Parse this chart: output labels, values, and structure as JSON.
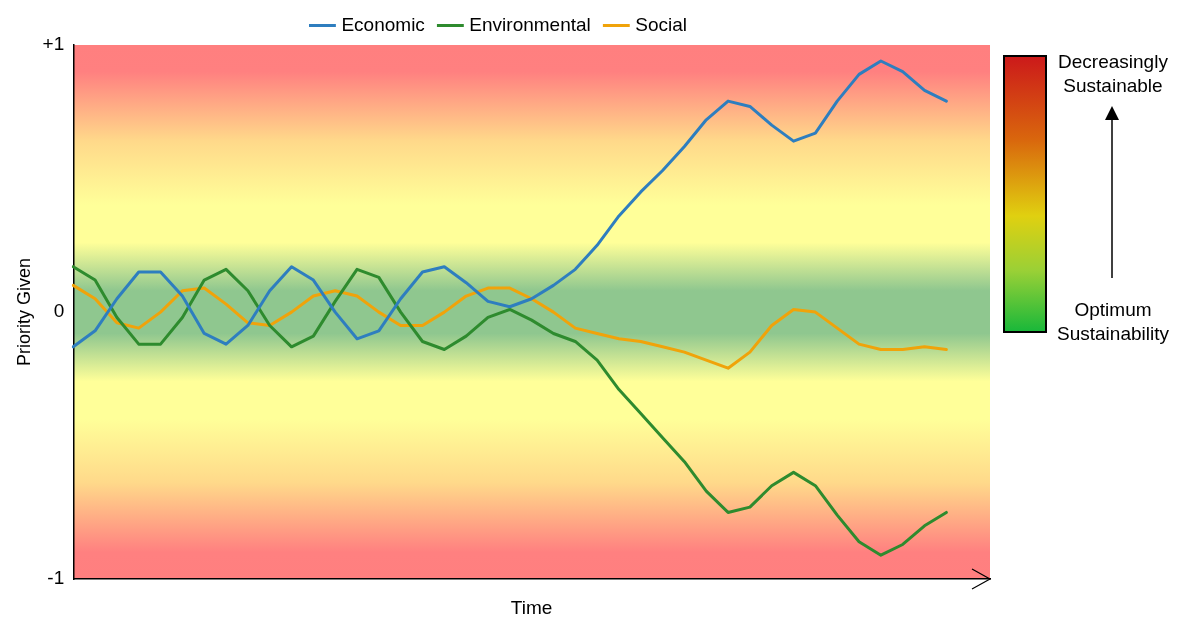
{
  "chart_data": {
    "type": "line",
    "xlabel": "Time",
    "ylabel": "Priority Given",
    "categories": [
      null,
      null,
      null,
      null,
      null,
      null,
      null,
      null,
      null,
      null,
      null,
      null,
      null,
      null,
      null,
      null,
      null,
      null,
      null,
      null,
      null,
      null,
      null,
      null,
      null,
      null,
      null,
      null,
      null,
      null,
      null,
      null,
      null,
      null,
      null,
      null,
      null,
      null,
      null,
      null,
      null,
      null,
      null
    ],
    "series": [
      {
        "name": "Economic",
        "color": "#2e7ebf",
        "values": [
          -0.13,
          -0.07,
          0.05,
          0.15,
          0.15,
          0.06,
          -0.08,
          -0.12,
          -0.05,
          0.08,
          0.17,
          0.12,
          0.0,
          -0.1,
          -0.07,
          0.05,
          0.15,
          0.17,
          0.11,
          0.04,
          0.02,
          0.05,
          0.1,
          0.16,
          0.25,
          0.36,
          0.45,
          0.53,
          0.62,
          0.72,
          0.79,
          0.77,
          0.7,
          0.64,
          0.67,
          0.79,
          0.89,
          0.94,
          0.9,
          0.83,
          0.79,
          null,
          null
        ]
      },
      {
        "name": "Environmental",
        "color": "#2e8b2e",
        "values": [
          0.17,
          0.12,
          -0.02,
          -0.12,
          -0.12,
          -0.02,
          0.12,
          0.16,
          0.08,
          -0.05,
          -0.13,
          -0.09,
          0.04,
          0.16,
          0.13,
          0.0,
          -0.11,
          -0.14,
          -0.09,
          -0.02,
          0.01,
          -0.03,
          -0.08,
          -0.11,
          -0.18,
          -0.29,
          -0.38,
          -0.47,
          -0.56,
          -0.67,
          -0.75,
          -0.73,
          -0.65,
          -0.6,
          -0.65,
          -0.76,
          -0.86,
          -0.91,
          -0.87,
          -0.8,
          -0.75,
          null,
          null
        ]
      },
      {
        "name": "Social",
        "color": "#f0a30a",
        "values": [
          0.1,
          0.05,
          -0.04,
          -0.06,
          0.0,
          0.08,
          0.09,
          0.03,
          -0.04,
          -0.05,
          0.0,
          0.06,
          0.08,
          0.06,
          0.0,
          -0.05,
          -0.05,
          0.0,
          0.06,
          0.09,
          0.09,
          0.05,
          0.0,
          -0.06,
          -0.08,
          -0.1,
          -0.11,
          -0.13,
          -0.15,
          -0.18,
          -0.21,
          -0.15,
          -0.05,
          0.01,
          0.0,
          -0.06,
          -0.12,
          -0.14,
          -0.14,
          -0.13,
          -0.14,
          null,
          null
        ]
      }
    ],
    "ylim": [
      -1,
      1
    ],
    "yticks": [
      {
        "value": -1,
        "label": "-1"
      },
      0,
      {
        "value": 1,
        "label": "+1"
      }
    ],
    "tick_labels": "y",
    "grid": false,
    "legend": "top",
    "marker": "none",
    "line_style": "solid",
    "annotations": [
      "Decreasingly Sustainable",
      "Optimum Sustainability"
    ]
  }
}
